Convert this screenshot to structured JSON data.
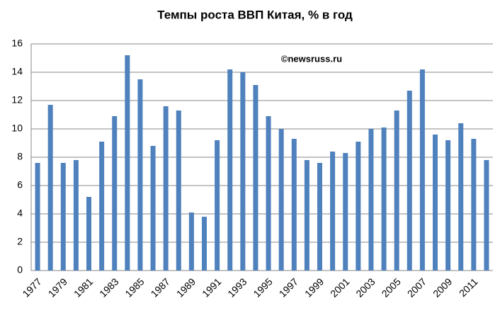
{
  "chart_data": {
    "type": "bar",
    "title": "Темпы роста ВВП Китая, % в год",
    "annotation": "©newsruss.ru",
    "categories": [
      "1977",
      null,
      "1979",
      null,
      "1981",
      null,
      "1983",
      null,
      "1985",
      null,
      "1987",
      null,
      "1989",
      null,
      "1991",
      null,
      "1993",
      null,
      "1995",
      null,
      "1997",
      null,
      "1999",
      null,
      "2001",
      null,
      "2003",
      null,
      "2005",
      null,
      "2007",
      null,
      "2009",
      null,
      "2011",
      null
    ],
    "values": [
      7.6,
      11.7,
      7.6,
      7.8,
      5.2,
      9.1,
      10.9,
      15.2,
      13.5,
      8.8,
      11.6,
      11.3,
      4.1,
      3.8,
      9.2,
      14.2,
      14.0,
      13.1,
      10.9,
      10.0,
      9.3,
      7.8,
      7.6,
      8.4,
      8.3,
      9.1,
      10.0,
      10.1,
      11.3,
      12.7,
      14.2,
      9.6,
      9.2,
      10.4,
      9.3,
      7.8
    ],
    "color": "#4f81bd",
    "ylim": [
      0,
      16
    ],
    "yticks": [
      0,
      2,
      4,
      6,
      8,
      10,
      12,
      14,
      16
    ],
    "grid": true
  }
}
